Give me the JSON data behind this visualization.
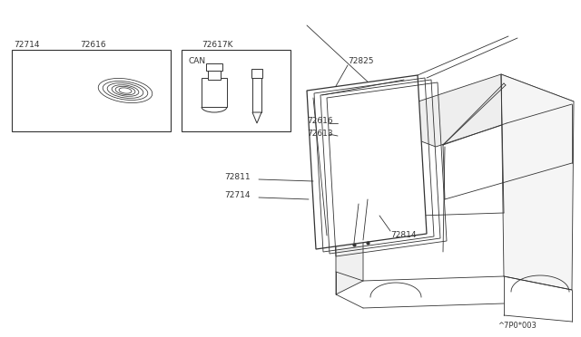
{
  "background_color": "#ffffff",
  "line_color": "#333333",
  "fig_width": 6.4,
  "fig_height": 3.72,
  "diagram_code": "^7P0*003"
}
